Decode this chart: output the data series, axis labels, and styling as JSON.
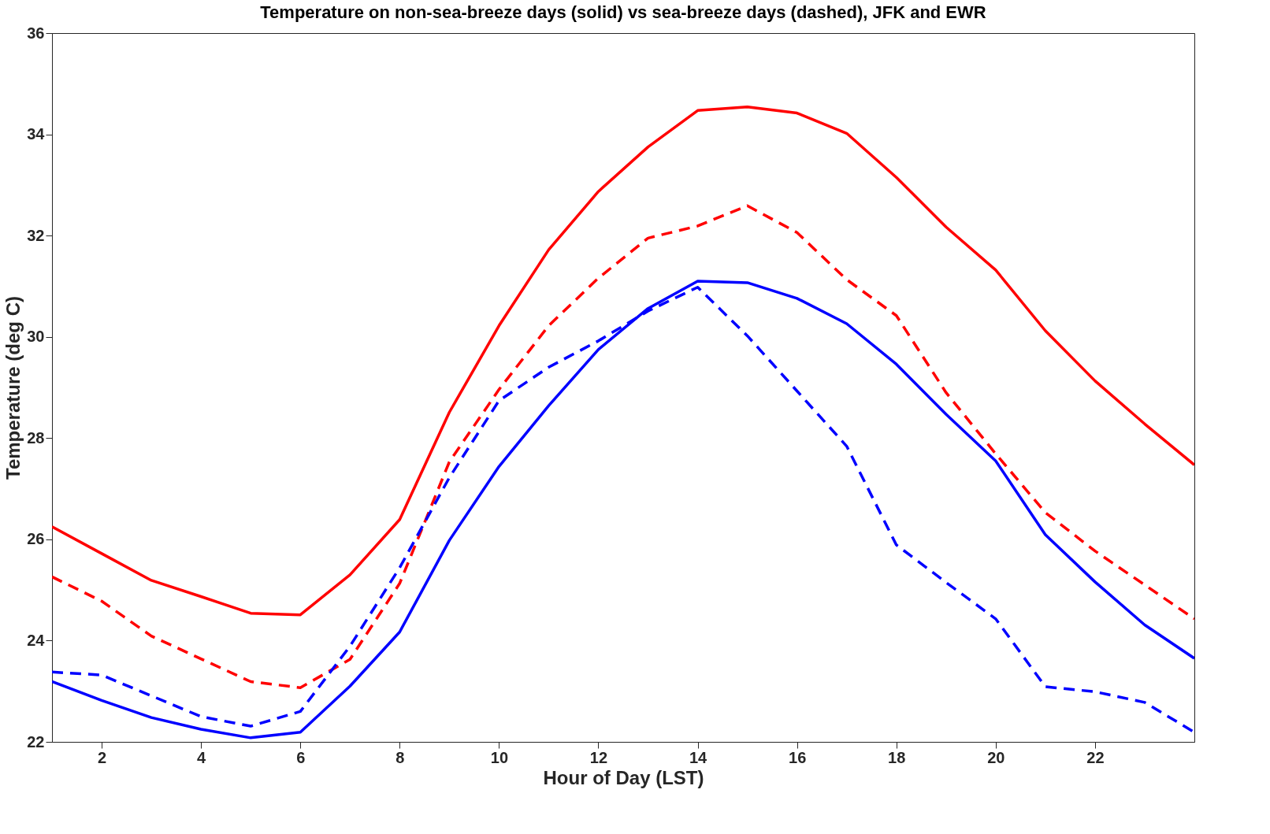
{
  "chart_data": {
    "type": "line",
    "title": "Temperature on non-sea-breeze days (solid) vs sea-breeze days (dashed), JFK and EWR",
    "xlabel": "Hour of Day (LST)",
    "ylabel": "Temperature (deg C)",
    "x": [
      1,
      2,
      3,
      4,
      5,
      6,
      7,
      8,
      9,
      10,
      11,
      12,
      13,
      14,
      15,
      16,
      17,
      18,
      19,
      20,
      21,
      22,
      23,
      24
    ],
    "series": [
      {
        "color": "#ff0000",
        "line_style": "solid",
        "values": [
          26.25,
          25.72,
          25.19,
          24.87,
          24.54,
          24.51,
          25.3,
          26.39,
          28.51,
          30.22,
          31.72,
          32.87,
          33.75,
          34.47,
          34.54,
          34.42,
          34.02,
          33.15,
          32.17,
          31.32,
          30.12,
          29.13,
          28.28,
          27.47
        ]
      },
      {
        "color": "#ff0000",
        "line_style": "dashed",
        "values": [
          25.26,
          24.78,
          24.09,
          23.64,
          23.19,
          23.07,
          23.63,
          25.13,
          27.53,
          28.96,
          30.22,
          31.16,
          31.95,
          32.19,
          32.59,
          32.06,
          31.13,
          30.42,
          28.9,
          27.69,
          26.53,
          25.77,
          25.1,
          24.43
        ]
      },
      {
        "color": "#0000ff",
        "line_style": "solid",
        "values": [
          23.19,
          22.82,
          22.48,
          22.25,
          22.08,
          22.19,
          23.1,
          24.17,
          25.98,
          27.44,
          28.64,
          29.75,
          30.56,
          31.1,
          31.07,
          30.76,
          30.26,
          29.46,
          28.47,
          27.55,
          26.09,
          25.16,
          24.31,
          23.65
        ]
      },
      {
        "color": "#0000ff",
        "line_style": "dashed",
        "values": [
          23.38,
          23.32,
          22.91,
          22.5,
          22.31,
          22.6,
          23.89,
          25.44,
          27.22,
          28.74,
          29.4,
          29.92,
          30.51,
          30.98,
          30.02,
          28.93,
          27.84,
          25.89,
          25.15,
          24.43,
          23.09,
          22.99,
          22.78,
          22.19
        ]
      }
    ],
    "xlim": [
      1,
      24
    ],
    "xticks": [
      2,
      4,
      6,
      8,
      10,
      12,
      14,
      16,
      18,
      20,
      22
    ],
    "ylim": [
      22,
      36
    ],
    "yticks": [
      22,
      24,
      26,
      28,
      30,
      32,
      34,
      36
    ],
    "grid": false,
    "legend": false
  }
}
